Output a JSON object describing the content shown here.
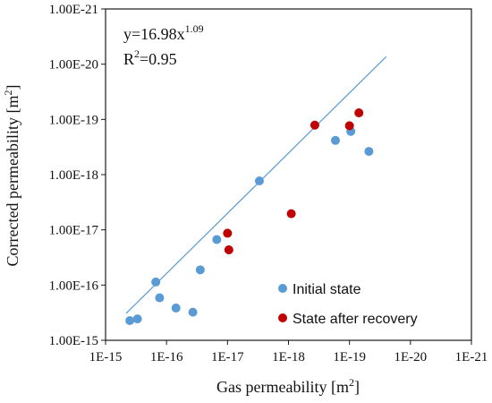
{
  "chart_data": {
    "type": "scatter",
    "x_scale": "log",
    "y_scale": "log",
    "xlim": [
      1e-15,
      1e-21
    ],
    "ylim": [
      1e-15,
      1e-21
    ],
    "x_tick_values": [
      1e-15,
      1e-16,
      1e-17,
      1e-18,
      1e-19,
      1e-20,
      1e-21
    ],
    "x_tick_labels": [
      "1E-15",
      "1E-16",
      "1E-17",
      "1E-18",
      "1E-19",
      "1E-20",
      "1E-21"
    ],
    "y_tick_values": [
      1e-15,
      1e-16,
      1e-17,
      1e-18,
      1e-19,
      1e-20,
      1e-21
    ],
    "y_tick_labels": [
      "1.00E-15",
      "1.00E-16",
      "1.00E-17",
      "1.00E-18",
      "1.00E-19",
      "1.00E-20",
      "1.00E-21"
    ],
    "xlabel": "Gas permeability",
    "xlabel_unit": "[m",
    "xlabel_unit_exp": "2",
    "xlabel_unit_close": "]",
    "ylabel": "Corrected permeability",
    "ylabel_unit": "[m",
    "ylabel_unit_exp": "2",
    "ylabel_unit_close": "]",
    "grid": false,
    "legend_position": "bottom-right",
    "series": [
      {
        "name": "Initial state",
        "color": "#5b9bd5",
        "points": [
          {
            "x": 4e-16,
            "y": 4.4e-16
          },
          {
            "x": 3e-16,
            "y": 4.1e-16
          },
          {
            "x": 1.5e-16,
            "y": 8.8e-17
          },
          {
            "x": 1.3e-16,
            "y": 1.7e-16
          },
          {
            "x": 7e-17,
            "y": 2.6e-16
          },
          {
            "x": 3.7e-17,
            "y": 3.1e-16
          },
          {
            "x": 2.8e-17,
            "y": 5.3e-17
          },
          {
            "x": 1.5e-17,
            "y": 1.5e-17
          },
          {
            "x": 3e-18,
            "y": 1.3e-18
          },
          {
            "x": 1.7e-19,
            "y": 2.4e-19
          },
          {
            "x": 9.5e-20,
            "y": 1.65e-19
          },
          {
            "x": 4.8e-20,
            "y": 3.8e-19
          }
        ]
      },
      {
        "name": "State after recovery",
        "color": "#c00000",
        "points": [
          {
            "x": 1e-17,
            "y": 1.15e-17
          },
          {
            "x": 9.5e-18,
            "y": 2.3e-17
          },
          {
            "x": 9e-19,
            "y": 5.1e-18
          },
          {
            "x": 3.7e-19,
            "y": 1.27e-19
          },
          {
            "x": 1e-19,
            "y": 1.3e-19
          },
          {
            "x": 7e-20,
            "y": 7.6e-20
          }
        ]
      }
    ],
    "trendline": {
      "color": "#5b9bd5",
      "equation_text": "y=16.98x",
      "equation_exp": "1.09",
      "r2_text_r": "R",
      "r2_text_sup": "2",
      "r2_text_val": "=0.95",
      "coefficient": 16.98,
      "exponent": 1.09,
      "x_range": [
        4.6e-16,
        2.5e-20
      ]
    }
  }
}
